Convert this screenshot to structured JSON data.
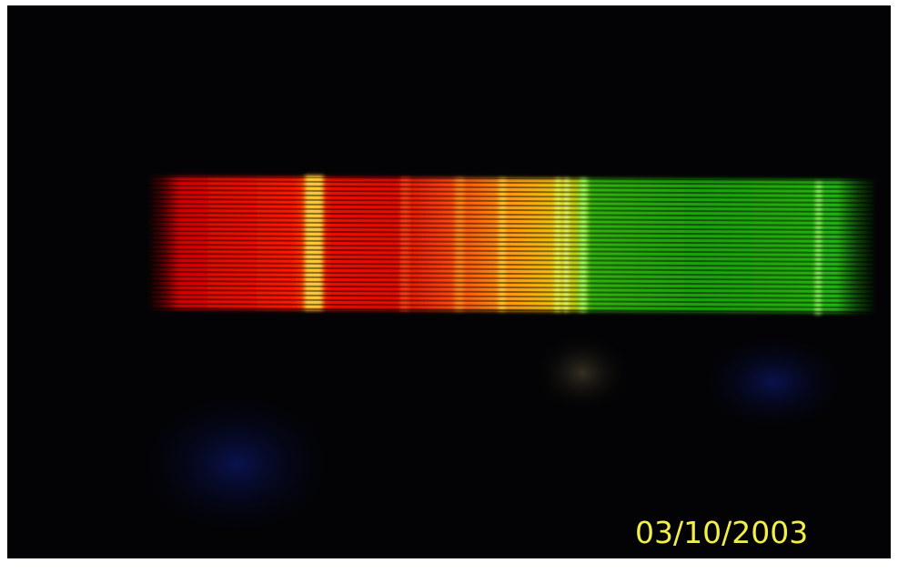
{
  "photo": {
    "date_stamp": "03/10/2003"
  }
}
